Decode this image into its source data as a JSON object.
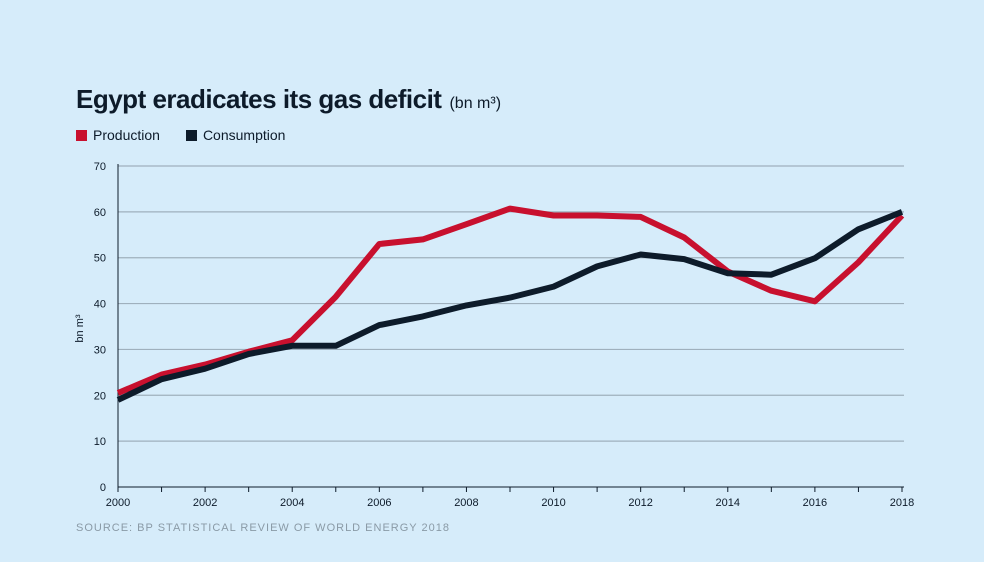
{
  "title": "Egypt eradicates its gas deficit",
  "unit": "(bn m³)",
  "source": "SOURCE: BP STATISTICAL REVIEW OF WORLD ENERGY 2018",
  "colors": {
    "production": "#c8102e",
    "consumption": "#0d1b2a",
    "grid": "#9fb0bd",
    "background": "#d6ecfa"
  },
  "chart_data": {
    "type": "line",
    "title": "Egypt eradicates its gas deficit",
    "ylabel": "bn m³",
    "xlabel": "",
    "x": [
      2000,
      2001,
      2002,
      2003,
      2004,
      2005,
      2006,
      2007,
      2008,
      2009,
      2010,
      2011,
      2012,
      2013,
      2014,
      2015,
      2016,
      2017,
      2018
    ],
    "xticks": [
      "2000",
      "2002",
      "2004",
      "2006",
      "2008",
      "2010",
      "2012",
      "2014",
      "2016",
      "2018"
    ],
    "yticks": [
      "0",
      "10",
      "20",
      "30",
      "40",
      "50",
      "60",
      "70"
    ],
    "ylim": [
      0,
      70
    ],
    "xlim": [
      2000,
      2018
    ],
    "grid": true,
    "legend_position": "top-left",
    "series": [
      {
        "name": "Production",
        "color": "#c8102e",
        "values": [
          20.5,
          24.5,
          26.7,
          29.5,
          32.0,
          41.5,
          53.0,
          54.0,
          57.3,
          60.7,
          59.2,
          59.2,
          58.9,
          54.4,
          47.0,
          42.8,
          40.5,
          49.0,
          59.2
        ]
      },
      {
        "name": "Consumption",
        "color": "#0d1b2a",
        "values": [
          19.0,
          23.5,
          25.8,
          29.0,
          30.8,
          30.8,
          35.3,
          37.2,
          39.6,
          41.3,
          43.7,
          48.1,
          50.7,
          49.7,
          46.6,
          46.3,
          49.9,
          56.2,
          60.0
        ]
      }
    ]
  }
}
